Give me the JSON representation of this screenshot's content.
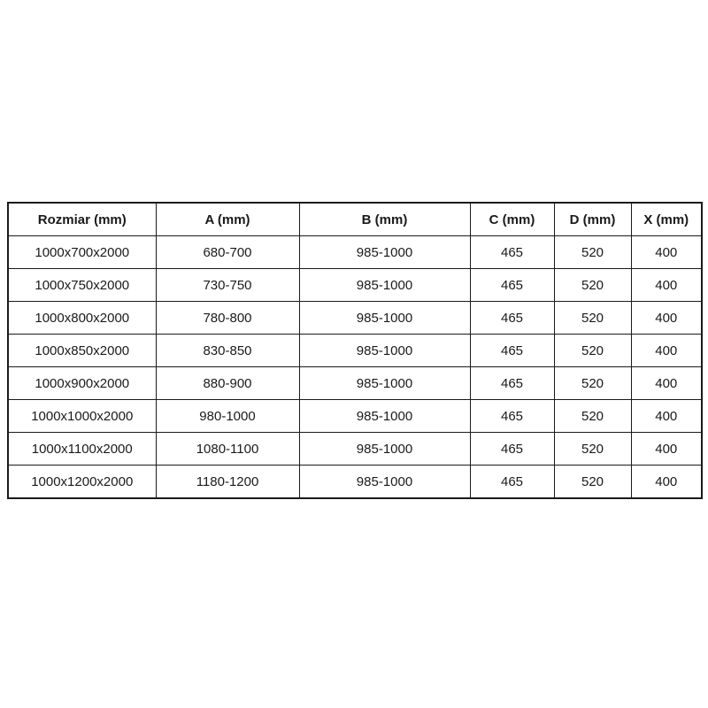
{
  "colors": {
    "background": "#ffffff",
    "border": "#1a1a1a",
    "text": "#1a1a1a"
  },
  "table": {
    "headers": [
      "Rozmiar (mm)",
      "A (mm)",
      "B (mm)",
      "C (mm)",
      "D (mm)",
      "X (mm)"
    ],
    "rows": [
      [
        "1000x700x2000",
        "680-700",
        "985-1000",
        "465",
        "520",
        "400"
      ],
      [
        "1000x750x2000",
        "730-750",
        "985-1000",
        "465",
        "520",
        "400"
      ],
      [
        "1000x800x2000",
        "780-800",
        "985-1000",
        "465",
        "520",
        "400"
      ],
      [
        "1000x850x2000",
        "830-850",
        "985-1000",
        "465",
        "520",
        "400"
      ],
      [
        "1000x900x2000",
        "880-900",
        "985-1000",
        "465",
        "520",
        "400"
      ],
      [
        "1000x1000x2000",
        "980-1000",
        "985-1000",
        "465",
        "520",
        "400"
      ],
      [
        "1000x1100x2000",
        "1080-1100",
        "985-1000",
        "465",
        "520",
        "400"
      ],
      [
        "1000x1200x2000",
        "1180-1200",
        "985-1000",
        "465",
        "520",
        "400"
      ]
    ]
  }
}
